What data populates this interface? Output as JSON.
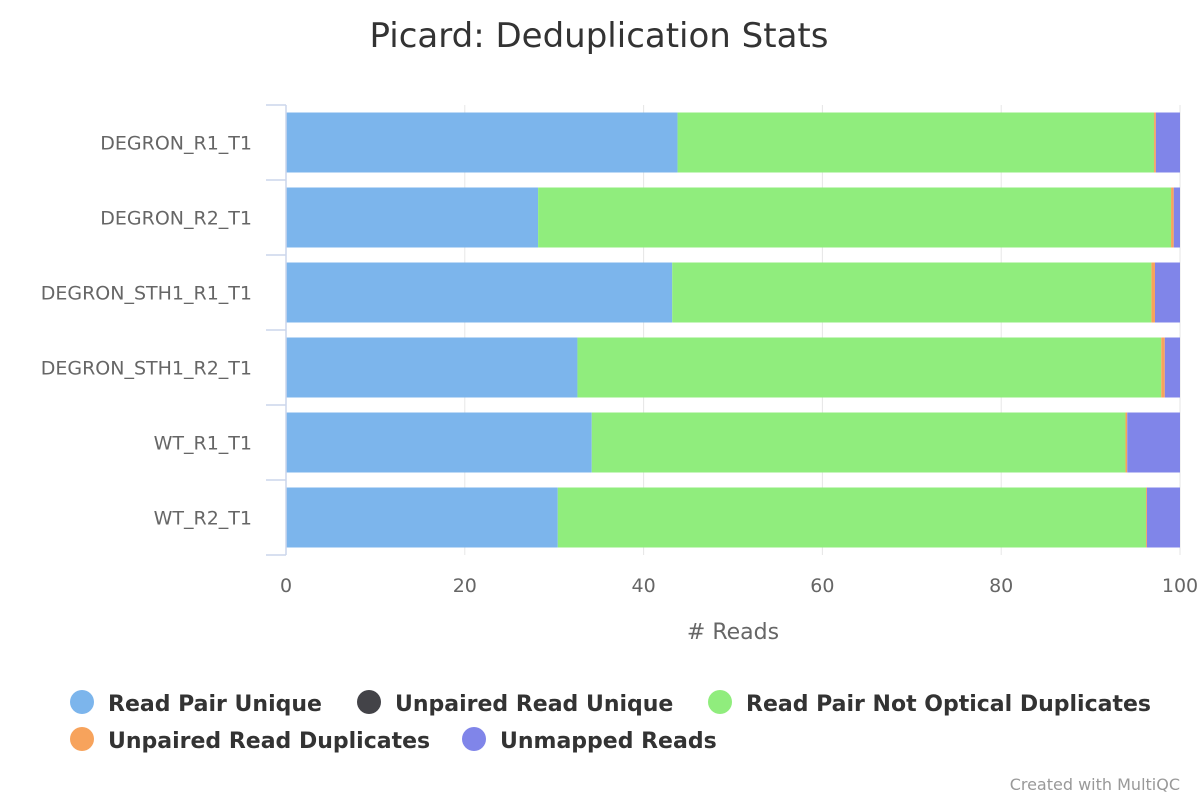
{
  "chart_data": {
    "type": "bar",
    "orientation": "horizontal",
    "stacked": true,
    "title": "Picard: Deduplication Stats",
    "xlabel": "# Reads",
    "ylabel": "",
    "xlim": [
      0,
      100
    ],
    "x_ticks": [
      0,
      20,
      40,
      60,
      80,
      100
    ],
    "grid": true,
    "legend_position": "bottom",
    "categories": [
      "DEGRON_R1_T1",
      "DEGRON_R2_T1",
      "DEGRON_STH1_R1_T1",
      "DEGRON_STH1_R2_T1",
      "WT_R1_T1",
      "WT_R2_T1"
    ],
    "series": [
      {
        "name": "Read Pair Unique",
        "color": "#7cb5ec",
        "values": [
          43.8,
          28.2,
          43.2,
          32.6,
          34.2,
          30.4
        ]
      },
      {
        "name": "Unpaired Read Unique",
        "color": "#434348",
        "values": [
          0.0,
          0.0,
          0.0,
          0.0,
          0.0,
          0.0
        ]
      },
      {
        "name": "Read Pair Not Optical Duplicates",
        "color": "#90ed7d",
        "values": [
          53.3,
          70.8,
          53.6,
          65.3,
          59.7,
          65.8
        ]
      },
      {
        "name": "Unpaired Read Duplicates",
        "color": "#f7a35c",
        "values": [
          0.2,
          0.3,
          0.4,
          0.4,
          0.2,
          0.1
        ]
      },
      {
        "name": "Unmapped Reads",
        "color": "#8085e9",
        "values": [
          2.7,
          0.7,
          2.8,
          1.7,
          5.9,
          3.7
        ]
      }
    ]
  },
  "credit": "Created with MultiQC"
}
